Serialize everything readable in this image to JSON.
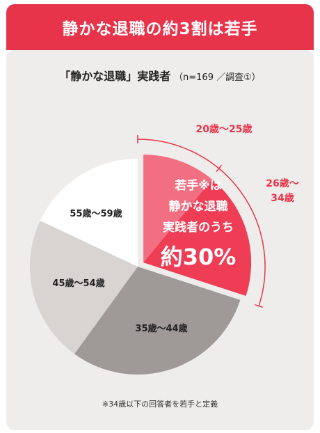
{
  "banner": {
    "title": "静かな退職の約3割は若手"
  },
  "subtitle": {
    "main": "「静かな退職」実践者",
    "note": "（n=169 ／調査①）"
  },
  "chart_data": {
    "type": "pie",
    "title": "静かな退職の約3割は若手",
    "slices": [
      {
        "label": "20歳〜25歳",
        "value": 11,
        "color": "#f26f82"
      },
      {
        "label": "26歳〜34歳",
        "value": 19,
        "color": "#ee3d55"
      },
      {
        "label": "35歳〜44歳",
        "value": 30,
        "color": "#9f9a98"
      },
      {
        "label": "45歳〜54歳",
        "value": 22,
        "color": "#d7d4d2"
      },
      {
        "label": "55歳〜59歳",
        "value": 18,
        "color": "#ffffff"
      }
    ],
    "highlight": {
      "lines": [
        "若手※は",
        "静かな退職",
        "実践者のうち"
      ],
      "value": "約30%"
    },
    "bracket_labels": [
      "20歳〜25歳",
      "26歳〜",
      "34歳"
    ]
  },
  "footnote": "※34歳以下の回答者を若手と定義"
}
